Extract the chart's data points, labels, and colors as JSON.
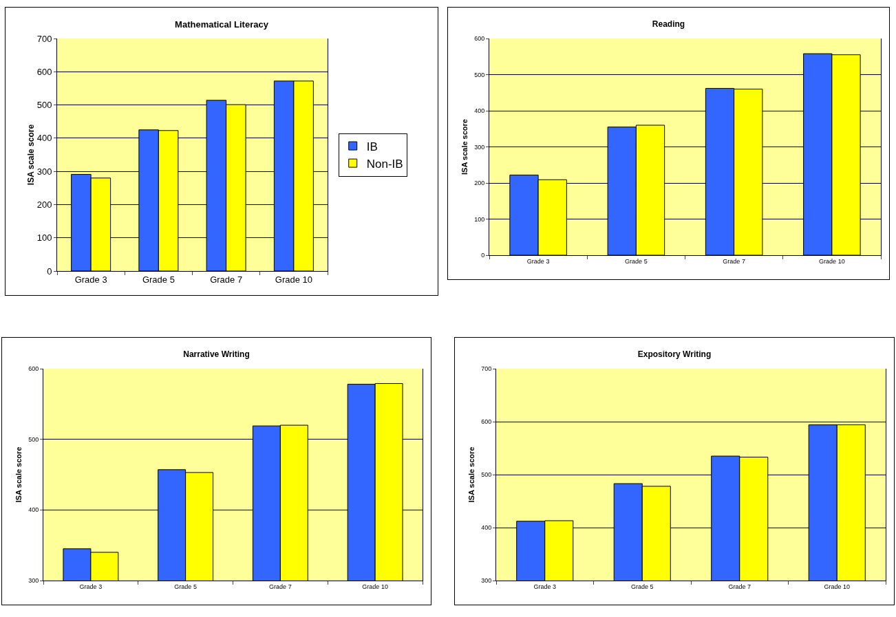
{
  "chart_data": [
    {
      "type": "bar",
      "title": "Mathematical Literacy",
      "ylabel": "ISA scale score",
      "categories": [
        "Grade 3",
        "Grade 5",
        "Grade 7",
        "Grade 10"
      ],
      "series": [
        {
          "name": "IB",
          "color": "#3366ff",
          "values": [
            291,
            425,
            514,
            572
          ]
        },
        {
          "name": "Non-IB",
          "color": "#ffff00",
          "values": [
            280,
            423,
            501,
            572
          ]
        }
      ],
      "ylim": [
        0,
        700
      ],
      "yticks": [
        0,
        100,
        200,
        300,
        400,
        500,
        600,
        700
      ],
      "grid": "y",
      "legend": "right"
    },
    {
      "type": "bar",
      "title": "Reading",
      "ylabel": "ISA scale score",
      "categories": [
        "Grade 3",
        "Grade 5",
        "Grade 7",
        "Grade 10"
      ],
      "series": [
        {
          "color": "#3366ff",
          "values": [
            222,
            355,
            462,
            558
          ]
        },
        {
          "color": "#ffff00",
          "values": [
            209,
            360,
            460,
            555
          ]
        }
      ],
      "ylim": [
        0,
        600
      ],
      "yticks": [
        0,
        100,
        200,
        300,
        400,
        500,
        600
      ],
      "grid": "y",
      "legend": false
    },
    {
      "type": "bar",
      "title": "Narrative Writing",
      "ylabel": "ISA scale score",
      "categories": [
        "Grade 3",
        "Grade 5",
        "Grade 7",
        "Grade 10"
      ],
      "series": [
        {
          "color": "#3366ff",
          "values": [
            345,
            457,
            519,
            578
          ]
        },
        {
          "color": "#ffff00",
          "values": [
            340,
            453,
            520,
            579
          ]
        }
      ],
      "ylim": [
        300,
        600
      ],
      "yticks": [
        300,
        400,
        500,
        600
      ],
      "grid": "y",
      "legend": false
    },
    {
      "type": "bar",
      "title": "Expository Writing",
      "ylabel": "ISA scale score",
      "categories": [
        "Grade 3",
        "Grade 5",
        "Grade 7",
        "Grade 10"
      ],
      "series": [
        {
          "color": "#3366ff",
          "values": [
            412,
            483,
            535,
            594
          ]
        },
        {
          "color": "#ffff00",
          "values": [
            413,
            478,
            533,
            594
          ]
        }
      ],
      "ylim": [
        300,
        700
      ],
      "yticks": [
        300,
        400,
        500,
        600,
        700
      ],
      "grid": "y",
      "legend": false
    }
  ]
}
